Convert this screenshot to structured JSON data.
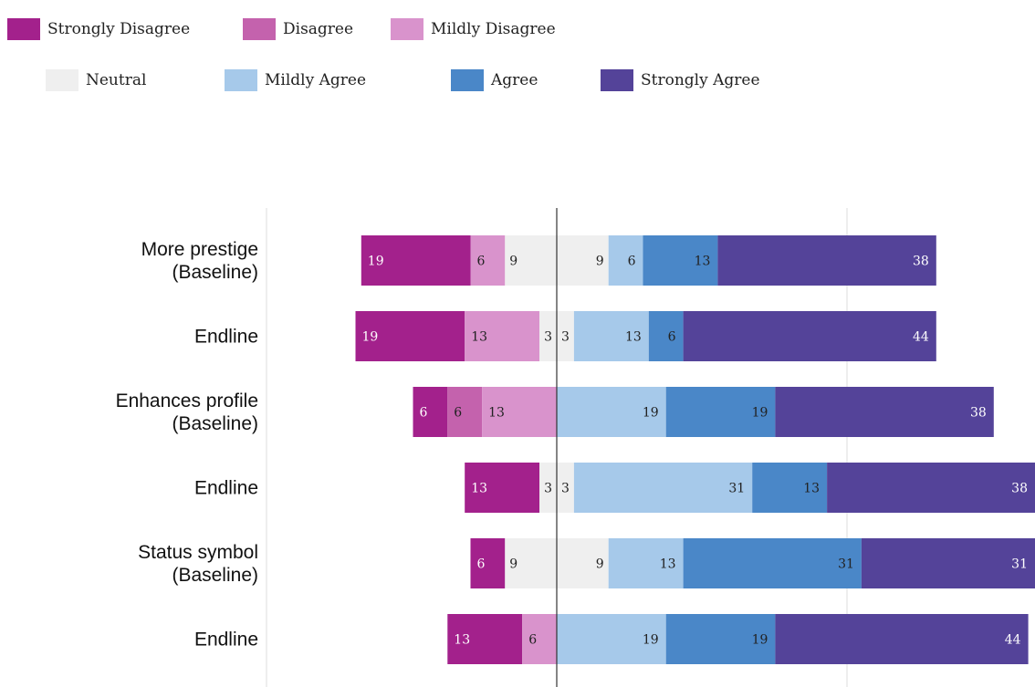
{
  "chart_data": {
    "type": "bar",
    "orientation": "horizontal",
    "stacked": true,
    "diverging": true,
    "legend_position": "top-left",
    "grid": true,
    "categories": [
      [
        "More prestige",
        "(Baseline)"
      ],
      [
        "Endline"
      ],
      [
        "Enhances profile",
        "(Baseline)"
      ],
      [
        "Endline"
      ],
      [
        "Status symbol",
        "(Baseline)"
      ],
      [
        "Endline"
      ]
    ],
    "series": [
      {
        "name": "Strongly Disagree",
        "color": "#a3218c",
        "label_color": "#ffffff",
        "values": [
          19,
          19,
          6,
          13,
          6,
          13
        ]
      },
      {
        "name": "Disagree",
        "color": "#c462ad",
        "label_color": "#222222",
        "values": [
          0,
          0,
          6,
          0,
          0,
          0
        ]
      },
      {
        "name": "Mildly Disagree",
        "color": "#d993cc",
        "label_color": "#222222",
        "values": [
          6,
          13,
          13,
          0,
          0,
          6
        ]
      },
      {
        "name": "Neutral",
        "color": "#efefef",
        "label_color": "#222222",
        "values": [
          18,
          6,
          0,
          6,
          18,
          0
        ]
      },
      {
        "name": "Mildly Agree",
        "color": "#a6c9ea",
        "label_color": "#222222",
        "values": [
          6,
          13,
          19,
          31,
          13,
          19
        ]
      },
      {
        "name": "Agree",
        "color": "#4a87c8",
        "label_color": "#222222",
        "values": [
          13,
          6,
          19,
          13,
          31,
          19
        ]
      },
      {
        "name": "Strongly Agree",
        "color": "#544399",
        "label_color": "#ffffff",
        "values": [
          38,
          44,
          38,
          38,
          31,
          44
        ]
      }
    ],
    "data_labels": [
      [
        "19",
        "6",
        "9",
        "9",
        "6",
        "13",
        "38"
      ],
      [
        "19",
        "13",
        "3",
        "3",
        "13",
        "6",
        "44"
      ],
      [
        "6",
        "6",
        "13",
        "19",
        "19",
        "38"
      ],
      [
        "13",
        "3",
        "3",
        "31",
        "13",
        "38"
      ],
      [
        "6",
        "9",
        "9",
        "13",
        "31",
        "31"
      ],
      [
        "13",
        "6",
        "19",
        "19",
        "44"
      ]
    ]
  }
}
